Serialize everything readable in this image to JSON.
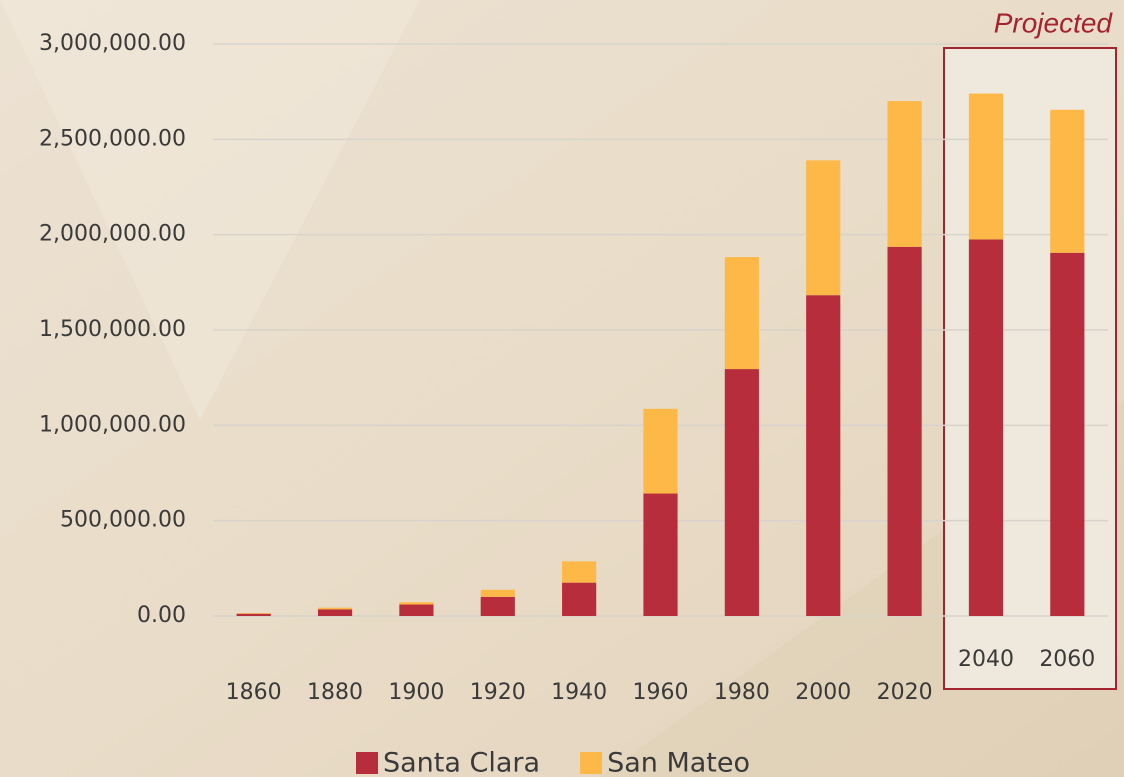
{
  "chart_data": {
    "type": "stacked_bar",
    "annotation": "Projected",
    "categories": [
      "1860",
      "1880",
      "1900",
      "1920",
      "1940",
      "1960",
      "1980",
      "2000",
      "2020",
      "2040",
      "2060"
    ],
    "series": [
      {
        "name": "Santa Clara",
        "color": "#b72d3c",
        "values": [
          11912,
          35039,
          60216,
          100676,
          174949,
          642315,
          1295071,
          1682585,
          1936259,
          1975000,
          1905000
        ]
      },
      {
        "name": "San Mateo",
        "color": "#fdb848",
        "values": [
          3214,
          8669,
          12094,
          36781,
          111782,
          444387,
          587329,
          707161,
          764442,
          765000,
          750000
        ]
      }
    ],
    "ylim": [
      0,
      3000000
    ],
    "yticks": [
      {
        "value": 0,
        "label": "0.00"
      },
      {
        "value": 500000,
        "label": "500,000.00"
      },
      {
        "value": 1000000,
        "label": "1,000,000.00"
      },
      {
        "value": 1500000,
        "label": "1,500,000.00"
      },
      {
        "value": 2000000,
        "label": "2,000,000.00"
      },
      {
        "value": 2500000,
        "label": "2,500,000.00"
      },
      {
        "value": 3000000,
        "label": "3,000,000.00"
      }
    ],
    "grid": true,
    "legend": "bottom"
  }
}
